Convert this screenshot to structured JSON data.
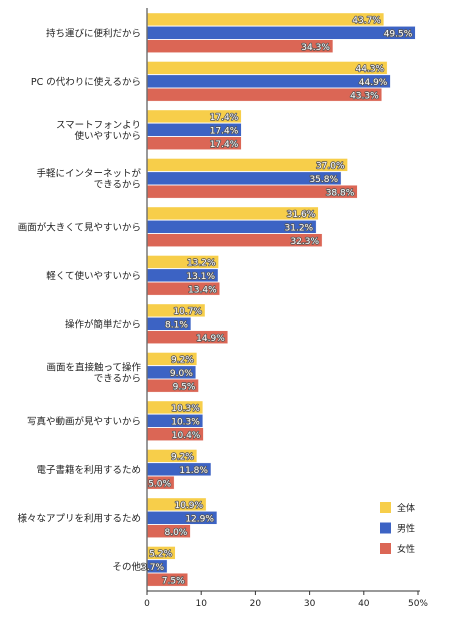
{
  "chart_data": {
    "type": "bar",
    "orientation": "horizontal",
    "categories": [
      "持ち運びに便利だから",
      "PC の代わりに使えるから",
      "スマートフォンより\n使いやすいから",
      "手軽にインターネットが\nできるから",
      "画面が大きくて見やすいから",
      "軽くて使いやすいから",
      "操作が簡単だから",
      "画面を直接触って操作\nできるから",
      "写真や動画が見やすいから",
      "電子書籍を利用するため",
      "様々なアプリを利用するため",
      "その他"
    ],
    "series": [
      {
        "name": "全体",
        "color": "#F7CE4A",
        "values": [
          43.7,
          44.3,
          17.4,
          37.0,
          31.6,
          13.2,
          10.7,
          9.2,
          10.3,
          9.2,
          10.9,
          5.2
        ],
        "labels": [
          "43.7%",
          "44.3%",
          "17.4%",
          "37.0%",
          "31.6%",
          "13.2%",
          "10.7%",
          "9.2%",
          "10.3%",
          "9.2%",
          "10.9%",
          "5.2%"
        ]
      },
      {
        "name": "男性",
        "color": "#3C63C4",
        "values": [
          49.5,
          44.9,
          17.4,
          35.8,
          31.2,
          13.1,
          8.1,
          9.0,
          10.3,
          11.8,
          12.9,
          3.7
        ],
        "labels": [
          "49.5%",
          "44.9%",
          "17.4%",
          "35.8%",
          "31.2%",
          "13.1%",
          "8.1%",
          "9.0%",
          "10.3%",
          "11.8%",
          "12.9%",
          "3.7%"
        ]
      },
      {
        "name": "女性",
        "color": "#DB6655",
        "values": [
          34.3,
          43.3,
          17.4,
          38.8,
          32.3,
          13.4,
          14.9,
          9.5,
          10.4,
          5.0,
          8.0,
          7.5
        ],
        "labels": [
          "34.3%",
          "43.3%",
          "17.4%",
          "38.8%",
          "32.3%",
          "13.4%",
          "14.9%",
          "9.5%",
          "10.4%",
          "5.0%",
          "8.0%",
          "7.5%"
        ]
      }
    ],
    "xlim": [
      0,
      50
    ],
    "x_ticks": [
      "0",
      "10",
      "20",
      "30",
      "40",
      "50%"
    ],
    "grid": false,
    "legend_position": "bottom-right"
  }
}
